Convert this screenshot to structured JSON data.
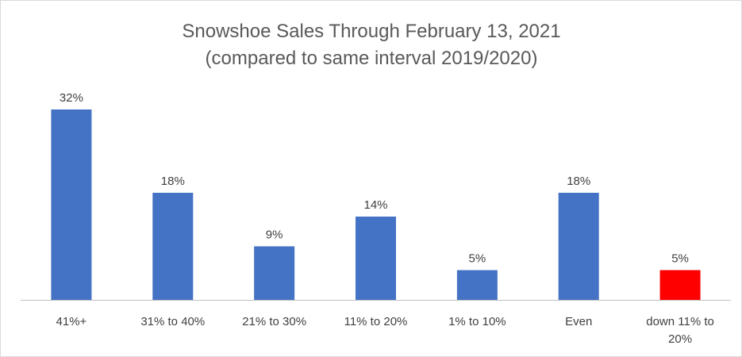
{
  "chart_data": {
    "type": "bar",
    "title": "Snowshoe Sales Through February 13, 2021",
    "subtitle": "(compared to same interval 2019/2020)",
    "categories": [
      "41%+",
      "31% to 40%",
      "21% to 30%",
      "11% to 20%",
      "1% to 10%",
      "Even",
      "down 11% to 20%"
    ],
    "category_lines": [
      [
        "41%+"
      ],
      [
        "31% to 40%"
      ],
      [
        "21% to 30%"
      ],
      [
        "11% to 20%"
      ],
      [
        "1% to 10%"
      ],
      [
        "Even"
      ],
      [
        "down 11% to",
        "20%"
      ]
    ],
    "values": [
      32,
      18,
      9,
      14,
      5,
      18,
      5
    ],
    "data_labels": [
      "32%",
      "18%",
      "9%",
      "14%",
      "5%",
      "18%",
      "5%"
    ],
    "colors": [
      "#4472C4",
      "#4472C4",
      "#4472C4",
      "#4472C4",
      "#4472C4",
      "#4472C4",
      "#FF0000"
    ],
    "axis_color": "#BFBFBF",
    "ylim": [
      0,
      32
    ],
    "xlabel": "",
    "ylabel": "",
    "grid": false,
    "legend": "none"
  }
}
